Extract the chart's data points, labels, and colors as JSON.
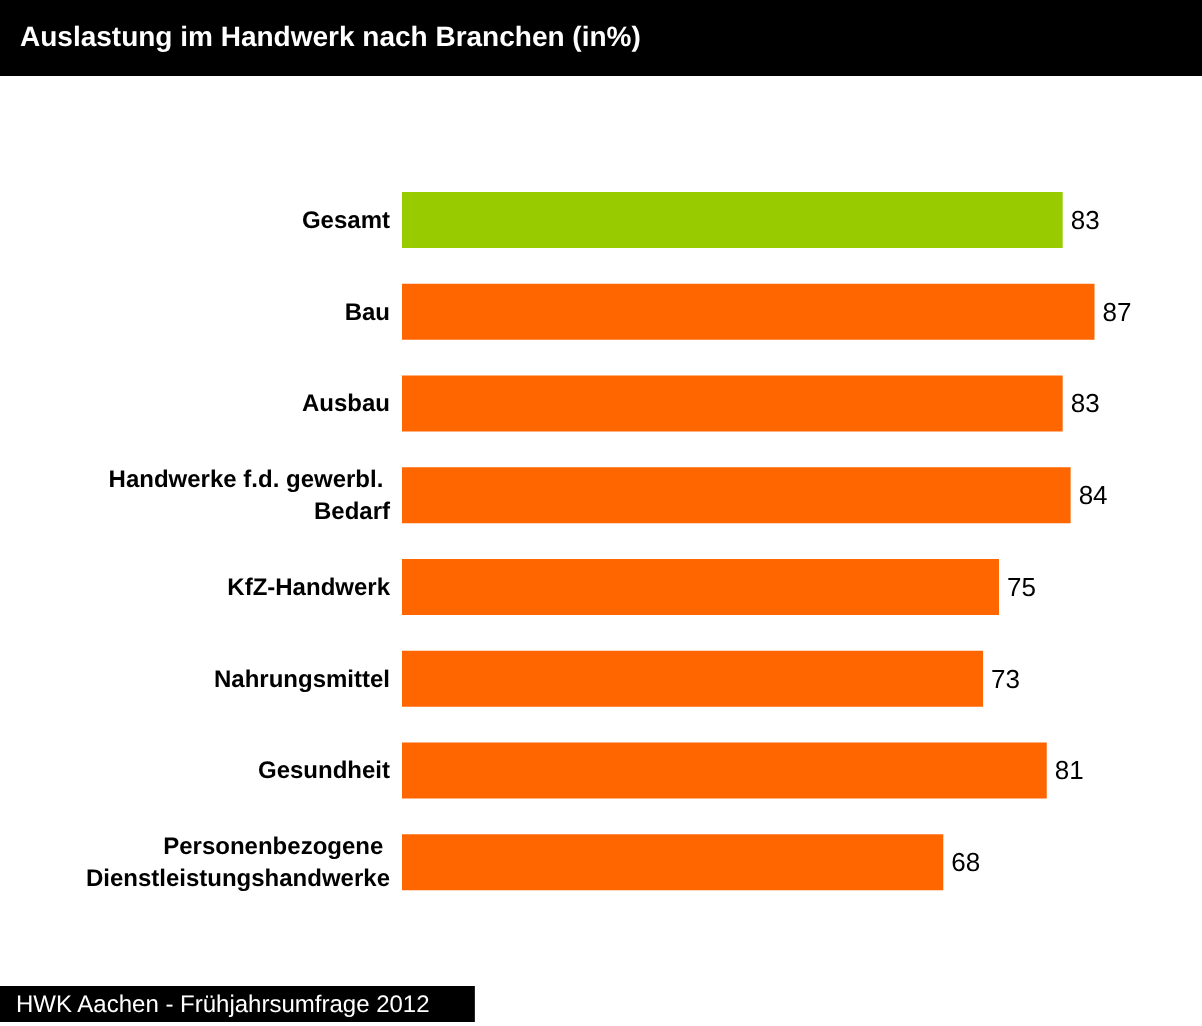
{
  "chart_data": {
    "type": "bar",
    "orientation": "horizontal",
    "title": "Auslastung im Handwerk nach Branchen (in%)",
    "categories": [
      "Gesamt",
      "Bau",
      "Ausbau",
      "Handwerke f.d. gewerbl. Bedarf",
      "KfZ-Handwerk",
      "Nahrungsmittel",
      "Gesundheit",
      "Personenbezogene Dienstleistungshandwerke"
    ],
    "values": [
      83,
      87,
      83,
      84,
      75,
      73,
      81,
      68
    ],
    "colors": [
      "#99cc00",
      "#ff6600",
      "#ff6600",
      "#ff6600",
      "#ff6600",
      "#ff6600",
      "#ff6600",
      "#ff6600"
    ],
    "data_labels": true,
    "annotations": [
      "HWK Aachen - Frühjahrsumfrage 2012"
    ]
  }
}
